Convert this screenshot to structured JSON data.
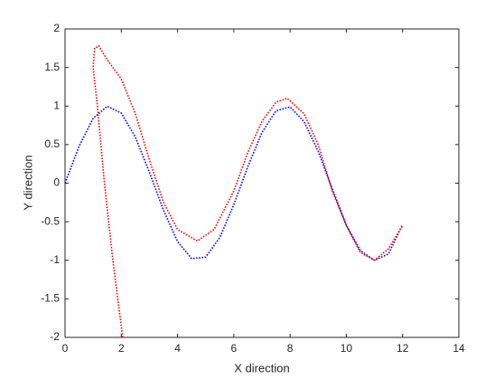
{
  "chart_data": {
    "type": "line",
    "xlabel": "X direction",
    "ylabel": "Y direction",
    "xlim": [
      0,
      14
    ],
    "ylim": [
      -2,
      2
    ],
    "xticks": [
      0,
      2,
      4,
      6,
      8,
      10,
      12,
      14
    ],
    "yticks": [
      -2,
      -1.5,
      -1,
      -0.5,
      0,
      0.5,
      1,
      1.5,
      2
    ],
    "grid": false,
    "line_style": "dotted",
    "series": [
      {
        "color": "#0000ff",
        "x": [
          0,
          0.5,
          1,
          1.5,
          2,
          2.5,
          3,
          3.5,
          4,
          4.5,
          5,
          5.5,
          6,
          6.5,
          7,
          7.5,
          8,
          8.5,
          9,
          9.5,
          10,
          10.5,
          11,
          11.5,
          12
        ],
        "values": [
          0,
          0.479,
          0.841,
          0.997,
          0.909,
          0.598,
          0.141,
          -0.351,
          -0.757,
          -0.978,
          -0.959,
          -0.706,
          -0.279,
          0.215,
          0.657,
          0.938,
          0.989,
          0.798,
          0.412,
          -0.075,
          -0.544,
          -0.875,
          -1.0,
          -0.917,
          -0.537
        ]
      },
      {
        "color": "#ff0000",
        "x": [
          2.05,
          1.7,
          1.4,
          1.15,
          1.0,
          1.05,
          1.2,
          1.5,
          2.0,
          2.5,
          3.0,
          3.5,
          4.0,
          4.7,
          5.3,
          6.0,
          6.5,
          7.0,
          7.5,
          7.9,
          8.5,
          9.0,
          9.5,
          10.0,
          10.5,
          11.0,
          11.5,
          12.0
        ],
        "values": [
          -2,
          -1,
          0,
          1,
          1.5,
          1.75,
          1.78,
          1.6,
          1.35,
          0.9,
          0.3,
          -0.25,
          -0.6,
          -0.75,
          -0.6,
          -0.1,
          0.4,
          0.8,
          1.05,
          1.1,
          0.9,
          0.5,
          -0.1,
          -0.55,
          -0.9,
          -1.0,
          -0.85,
          -0.55
        ]
      }
    ]
  }
}
